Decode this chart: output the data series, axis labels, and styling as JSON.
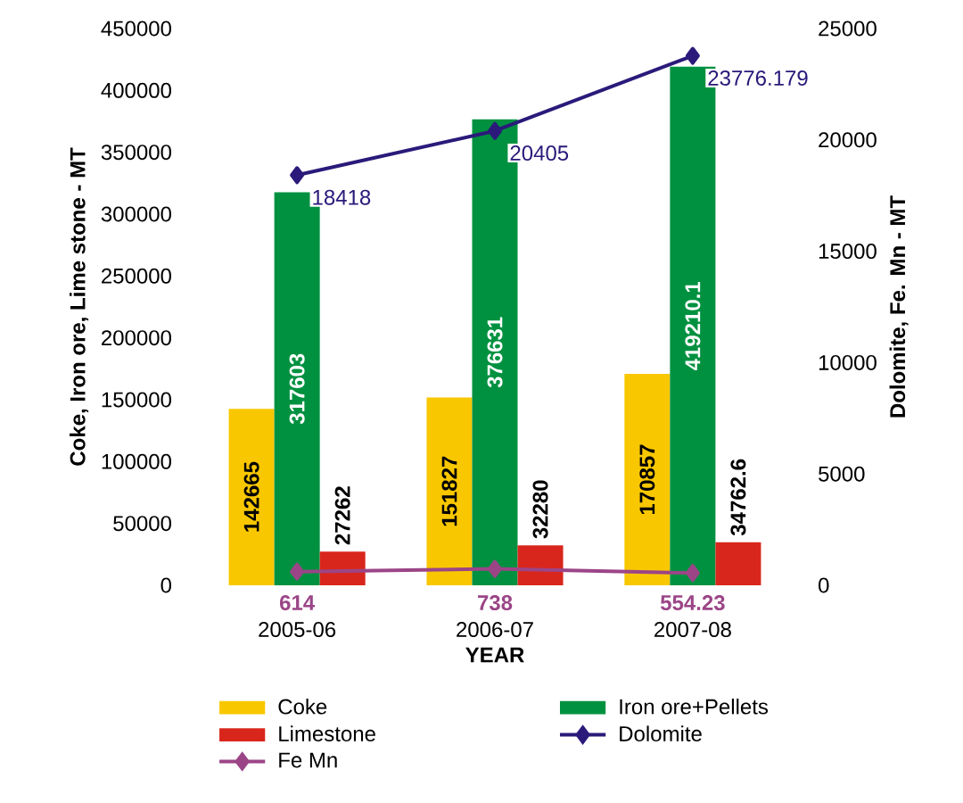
{
  "chart_data": {
    "type": "bar",
    "xlabel": "YEAR",
    "ylabel": "Coke, Iron ore, Lime stone - MT",
    "y2label": "Dolomite, Fe. Mn - MT",
    "categories": [
      "2005-06",
      "2006-07",
      "2007-08"
    ],
    "series": [
      {
        "name": "Coke",
        "color": "#f9c700",
        "values": [
          142665,
          151827,
          170857
        ]
      },
      {
        "name": "Iron ore+Pellets",
        "color": "#009140",
        "values": [
          317603,
          376631,
          419210.1
        ]
      },
      {
        "name": "Limestone",
        "color": "#d9261c",
        "values": [
          27262,
          32280,
          34762.6
        ]
      },
      {
        "name": "Dolomite",
        "type": "line",
        "axis": "y2",
        "color": "#2b1a7a",
        "values": [
          18418,
          20405,
          23776.179
        ]
      },
      {
        "name": "Fe Mn",
        "type": "line",
        "axis": "y2",
        "color": "#9b4587",
        "values": [
          614,
          738,
          554.23
        ]
      }
    ],
    "ylim": [
      0,
      450000
    ],
    "yticks": [
      0,
      50000,
      100000,
      150000,
      200000,
      250000,
      300000,
      350000,
      400000,
      450000
    ],
    "y2lim": [
      0,
      25000
    ],
    "y2ticks": [
      0,
      5000,
      10000,
      15000,
      20000,
      25000
    ],
    "data_labels": true,
    "marker": "diamond",
    "legend": "bottom",
    "grid": false
  }
}
